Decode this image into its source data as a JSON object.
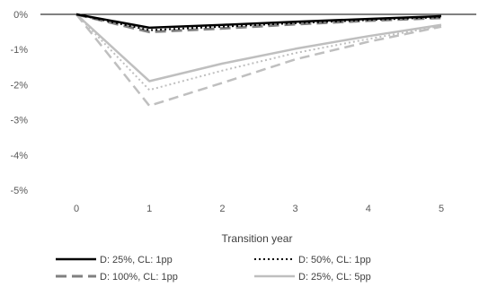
{
  "chart_data": {
    "type": "line",
    "title": "",
    "xlabel": "Transition year",
    "ylabel": "",
    "x": [
      0,
      1,
      2,
      3,
      4,
      5
    ],
    "x_tick_labels": [
      "0",
      "1",
      "2",
      "3",
      "4",
      "5"
    ],
    "ylim": [
      -5,
      0
    ],
    "y_ticks": [
      0,
      -1,
      -2,
      -3,
      -4,
      -5
    ],
    "y_tick_labels": [
      "0%",
      "-1%",
      "-2%",
      "-3%",
      "-4%",
      "-5%"
    ],
    "grid": false,
    "legend_position": "bottom",
    "series": [
      {
        "name": "D: 25%, CL: 1pp",
        "values": [
          0,
          -0.38,
          -0.3,
          -0.21,
          -0.13,
          -0.05
        ],
        "color": "#000000",
        "style": "solid",
        "width": 2.5
      },
      {
        "name": "D: 50%, CL: 1pp",
        "values": [
          0,
          -0.45,
          -0.35,
          -0.25,
          -0.16,
          -0.08
        ],
        "color": "#000000",
        "style": "dotted",
        "width": 2
      },
      {
        "name": "D: 100%, CL: 1pp",
        "values": [
          0,
          -0.5,
          -0.4,
          -0.28,
          -0.18,
          -0.1
        ],
        "color": "#808080",
        "style": "dashed",
        "width": 3
      },
      {
        "name": "D: 25%, CL: 5pp",
        "values": [
          0,
          -1.9,
          -1.4,
          -0.98,
          -0.62,
          -0.3
        ],
        "color": "#bfbfbf",
        "style": "solid",
        "width": 2.5
      },
      {
        "name": "",
        "values": [
          0,
          -2.15,
          -1.6,
          -1.1,
          -0.7,
          -0.33
        ],
        "color": "#bfbfbf",
        "style": "dotted",
        "width": 2
      },
      {
        "name": "",
        "values": [
          0,
          -2.6,
          -1.95,
          -1.28,
          -0.78,
          -0.35
        ],
        "color": "#bfbfbf",
        "style": "dashed",
        "width": 2.5
      }
    ]
  }
}
